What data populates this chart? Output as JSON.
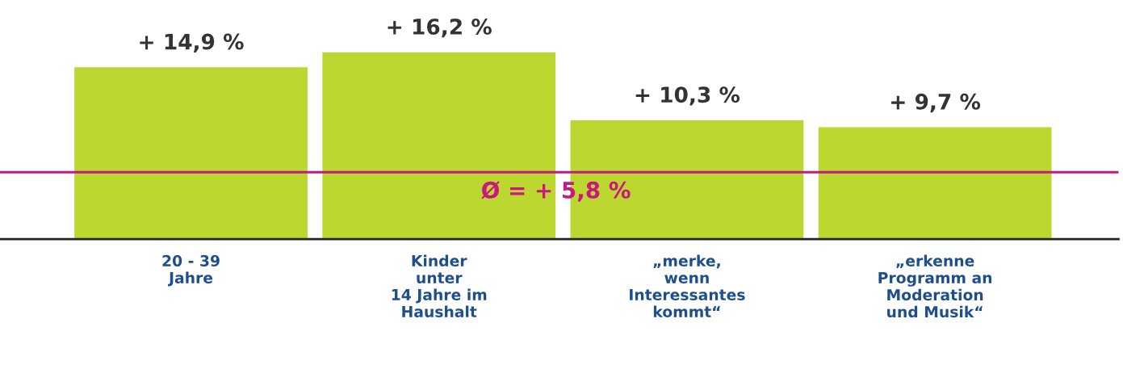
{
  "chart_data": {
    "type": "bar",
    "categories": [
      "20 - 39\nJahre",
      "Kinder\nunter\n14 Jahre im\nHaushalt",
      "„merke,\nwenn\nInteressantes\nkommt“",
      "„erkenne\nProgramm an\nModeration\nund Musik“"
    ],
    "values": [
      14.9,
      16.2,
      10.3,
      9.7
    ],
    "value_labels": [
      "+ 14,9 %",
      "+ 16,2 %",
      "+ 10,3 %",
      "+ 9,7 %"
    ],
    "color": "#bdd731",
    "ref_lines": [
      {
        "axis": "y",
        "value": 5.8,
        "label": "Ø = + 5,8 %",
        "color": "#c8177f",
        "line_style": "solid"
      }
    ],
    "grid": false,
    "tick_labels": "x"
  }
}
